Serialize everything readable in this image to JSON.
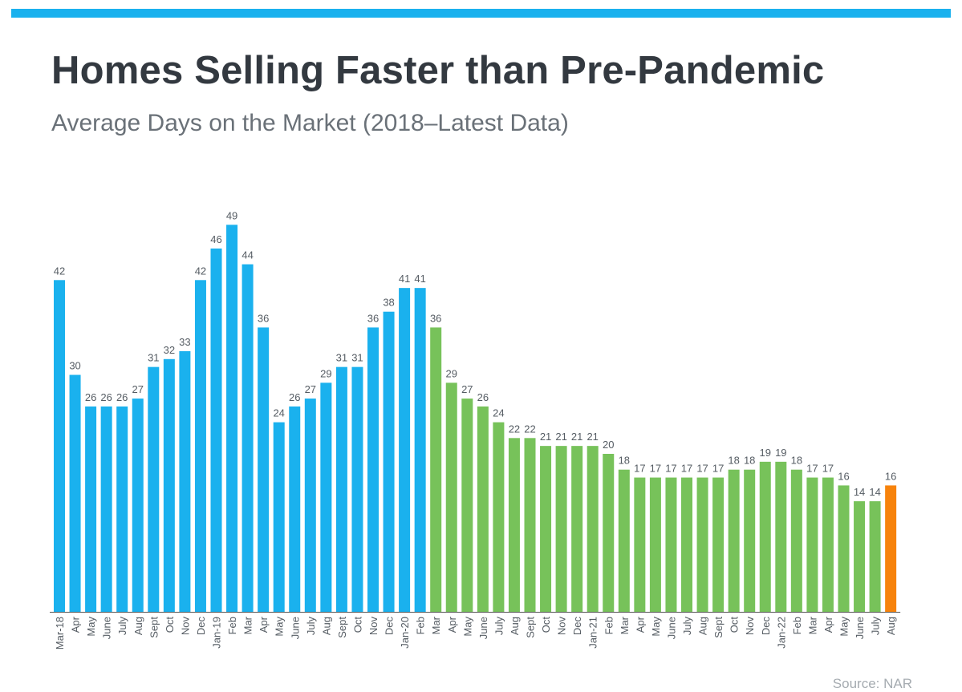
{
  "title": "Homes Selling Faster than Pre-Pandemic",
  "subtitle": "Average Days on the Market (2018–Latest Data)",
  "source": "Source: NAR",
  "colors": {
    "top_rule": "#1ab1ee",
    "pre_pandemic": "#1ab1ee",
    "pandemic": "#77c25a",
    "latest": "#f7830c",
    "axis": "#555555",
    "label": "#555c63"
  },
  "chart_data": {
    "type": "bar",
    "title": "Homes Selling Faster than Pre-Pandemic",
    "subtitle": "Average Days on the Market (2018–Latest Data)",
    "ylim": [
      0,
      52
    ],
    "grid": false,
    "legend": "none",
    "categories": [
      "Mar-18",
      "Apr",
      "May",
      "June",
      "July",
      "Aug",
      "Sept",
      "Oct",
      "Nov",
      "Dec",
      "Jan-19",
      "Feb",
      "Mar",
      "Apr",
      "May",
      "June",
      "July",
      "Aug",
      "Sept",
      "Oct",
      "Nov",
      "Dec",
      "Jan-20",
      "Feb",
      "Mar",
      "Apr",
      "May",
      "June",
      "July",
      "Aug",
      "Sept",
      "Oct",
      "Nov",
      "Dec",
      "Jan-21",
      "Feb",
      "Mar",
      "Apr",
      "May",
      "June",
      "July",
      "Aug",
      "Sept",
      "Oct",
      "Nov",
      "Dec",
      "Jan-22",
      "Feb",
      "Mar",
      "Apr",
      "May",
      "June",
      "July",
      "Aug"
    ],
    "values": [
      42,
      30,
      26,
      26,
      26,
      27,
      31,
      32,
      33,
      42,
      46,
      49,
      44,
      36,
      24,
      26,
      27,
      29,
      31,
      31,
      36,
      38,
      41,
      41,
      36,
      29,
      27,
      26,
      24,
      22,
      22,
      21,
      21,
      21,
      21,
      20,
      18,
      17,
      17,
      17,
      17,
      17,
      17,
      18,
      18,
      19,
      19,
      18,
      17,
      17,
      16,
      14,
      14,
      16
    ],
    "bar_colors": [
      "#1ab1ee",
      "#1ab1ee",
      "#1ab1ee",
      "#1ab1ee",
      "#1ab1ee",
      "#1ab1ee",
      "#1ab1ee",
      "#1ab1ee",
      "#1ab1ee",
      "#1ab1ee",
      "#1ab1ee",
      "#1ab1ee",
      "#1ab1ee",
      "#1ab1ee",
      "#1ab1ee",
      "#1ab1ee",
      "#1ab1ee",
      "#1ab1ee",
      "#1ab1ee",
      "#1ab1ee",
      "#1ab1ee",
      "#1ab1ee",
      "#1ab1ee",
      "#1ab1ee",
      "#77c25a",
      "#77c25a",
      "#77c25a",
      "#77c25a",
      "#77c25a",
      "#77c25a",
      "#77c25a",
      "#77c25a",
      "#77c25a",
      "#77c25a",
      "#77c25a",
      "#77c25a",
      "#77c25a",
      "#77c25a",
      "#77c25a",
      "#77c25a",
      "#77c25a",
      "#77c25a",
      "#77c25a",
      "#77c25a",
      "#77c25a",
      "#77c25a",
      "#77c25a",
      "#77c25a",
      "#77c25a",
      "#77c25a",
      "#77c25a",
      "#77c25a",
      "#77c25a",
      "#f7830c"
    ]
  }
}
